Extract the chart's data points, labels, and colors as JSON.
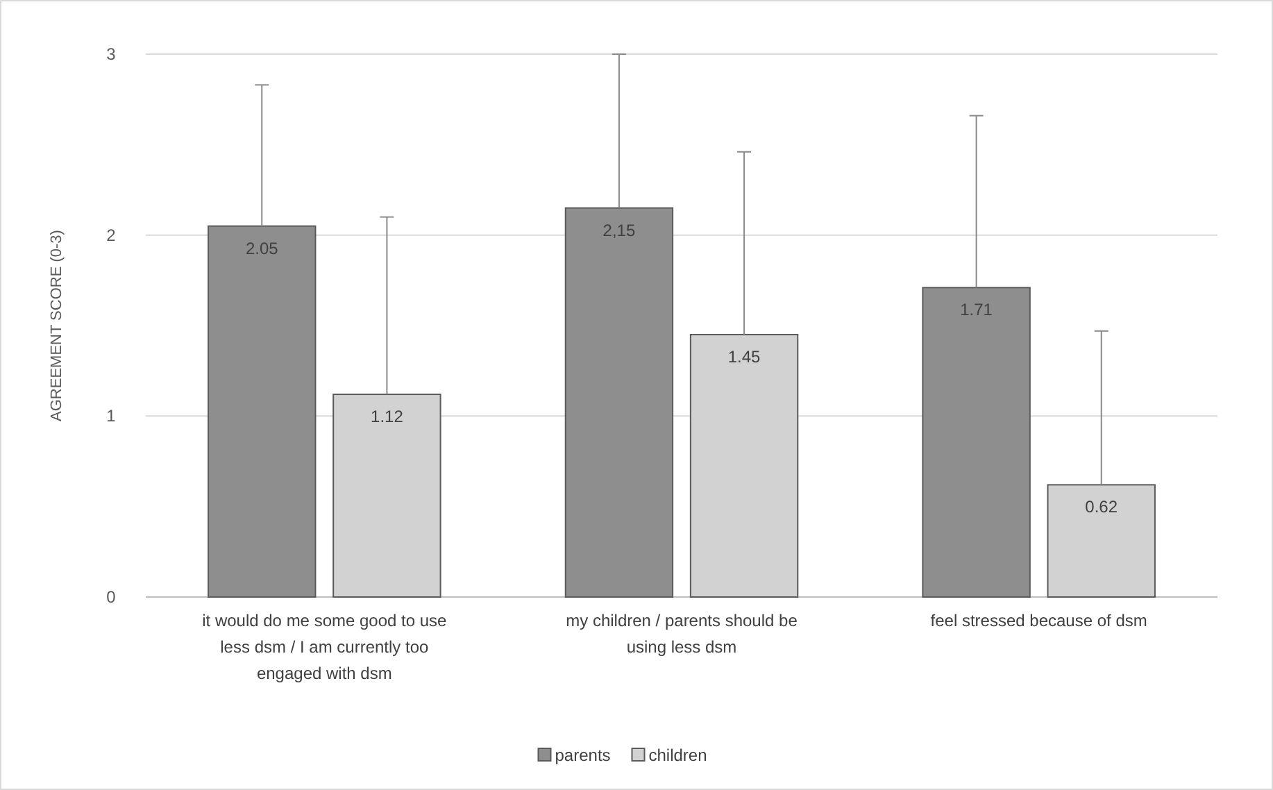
{
  "chart_data": {
    "type": "bar",
    "ylabel": "AGREEMENT SCORE (0-3)",
    "categories": [
      "it would do me some good to use less dsm / I am currently too engaged with dsm",
      "my children / parents should be using less dsm",
      "feel stressed because of dsm"
    ],
    "series": [
      {
        "name": "parents",
        "color": "#8e8e8e",
        "values": [
          2.05,
          2.15,
          1.71
        ],
        "errors": [
          [
            2.05,
            2.83
          ],
          [
            2.15,
            3.0
          ],
          [
            1.71,
            2.66
          ]
        ],
        "value_labels": [
          "2.05",
          "2,15",
          "1.71"
        ]
      },
      {
        "name": "children",
        "color": "#d2d2d2",
        "values": [
          1.12,
          1.45,
          0.62
        ],
        "errors": [
          [
            1.12,
            2.1
          ],
          [
            1.45,
            2.46
          ],
          [
            0.62,
            1.47
          ]
        ],
        "value_labels": [
          "1.12",
          "1.45",
          "0.62"
        ]
      }
    ],
    "ylim": [
      0,
      3
    ],
    "yticks": [
      0,
      1,
      2,
      3
    ],
    "grid": "y",
    "legend": "bottom"
  }
}
